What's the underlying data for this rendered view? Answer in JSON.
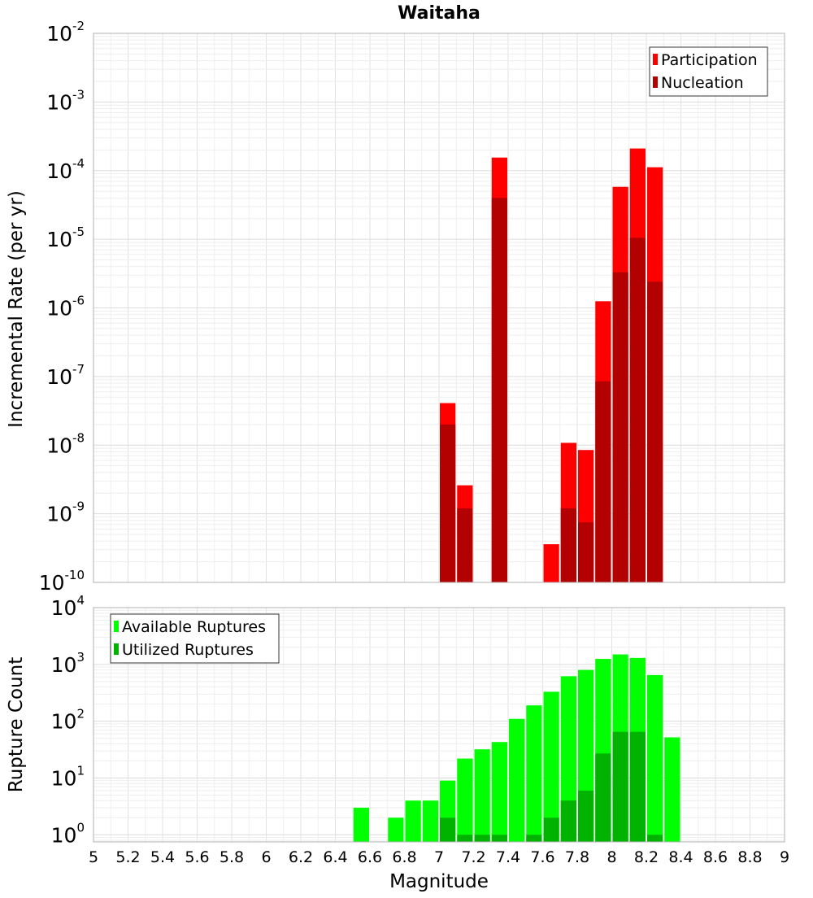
{
  "chart_data": [
    {
      "type": "bar",
      "title": "Waitaha",
      "xlabel": "",
      "ylabel": "Incremental Rate (per yr)",
      "yscale": "log",
      "ylim": [
        1e-10,
        0.01
      ],
      "xlim": [
        5,
        9
      ],
      "bin_width": 0.1,
      "y_tick_labels": [
        {
          "base": "10",
          "exp": "-10"
        },
        {
          "base": "10",
          "exp": "-9"
        },
        {
          "base": "10",
          "exp": "-8"
        },
        {
          "base": "10",
          "exp": "-7"
        },
        {
          "base": "10",
          "exp": "-6"
        },
        {
          "base": "10",
          "exp": "-5"
        },
        {
          "base": "10",
          "exp": "-4"
        },
        {
          "base": "10",
          "exp": "-3"
        },
        {
          "base": "10",
          "exp": "-2"
        }
      ],
      "legend_position": "top-right",
      "grid": true,
      "series": [
        {
          "name": "Participation",
          "color": "#ff0000",
          "x": [
            7.05,
            7.15,
            7.35,
            7.65,
            7.75,
            7.85,
            7.95,
            8.05,
            8.15,
            8.25
          ],
          "values": [
            4.1e-08,
            2.6e-09,
            0.000155,
            3.6e-10,
            1.08e-08,
            8.5e-09,
            1.25e-06,
            5.8e-05,
            0.00021,
            0.000112
          ]
        },
        {
          "name": "Nucleation",
          "color": "#b30000",
          "x": [
            7.05,
            7.15,
            7.35,
            7.75,
            7.85,
            7.95,
            8.05,
            8.15,
            8.25
          ],
          "values": [
            2e-08,
            1.2e-09,
            4e-05,
            1.2e-09,
            7.5e-10,
            8.5e-08,
            3.3e-06,
            1.05e-05,
            2.4e-06
          ]
        }
      ]
    },
    {
      "type": "bar",
      "title": "",
      "xlabel": "Magnitude",
      "ylabel": "Rupture Count",
      "yscale": "log",
      "ylim": [
        0.75,
        10000
      ],
      "xlim": [
        5,
        9
      ],
      "bin_width": 0.1,
      "x_tick_labels": [
        "5",
        "5.2",
        "5.4",
        "5.6",
        "5.8",
        "6",
        "6.2",
        "6.4",
        "6.6",
        "6.8",
        "7",
        "7.2",
        "7.4",
        "7.6",
        "7.8",
        "8",
        "8.2",
        "8.4",
        "8.6",
        "8.8",
        "9"
      ],
      "y_tick_labels": [
        {
          "base": "10",
          "exp": "0"
        },
        {
          "base": "10",
          "exp": "1"
        },
        {
          "base": "10",
          "exp": "2"
        },
        {
          "base": "10",
          "exp": "3"
        },
        {
          "base": "10",
          "exp": "4"
        }
      ],
      "legend_position": "top-left",
      "grid": true,
      "series": [
        {
          "name": "Available Ruptures",
          "color": "#00ff00",
          "x": [
            6.55,
            6.75,
            6.85,
            6.95,
            7.05,
            7.15,
            7.25,
            7.35,
            7.45,
            7.55,
            7.65,
            7.75,
            7.85,
            7.95,
            8.05,
            8.15,
            8.25,
            8.35
          ],
          "values": [
            3,
            2,
            4,
            4,
            9,
            22,
            32,
            43,
            110,
            190,
            330,
            620,
            800,
            1250,
            1500,
            1300,
            650,
            52
          ]
        },
        {
          "name": "Utilized Ruptures",
          "color": "#00b300",
          "x": [
            7.05,
            7.15,
            7.25,
            7.35,
            7.55,
            7.65,
            7.75,
            7.85,
            7.95,
            8.05,
            8.15,
            8.25
          ],
          "values": [
            2,
            1,
            1,
            1,
            1,
            2,
            4,
            6,
            27,
            65,
            65,
            1
          ]
        }
      ]
    }
  ]
}
